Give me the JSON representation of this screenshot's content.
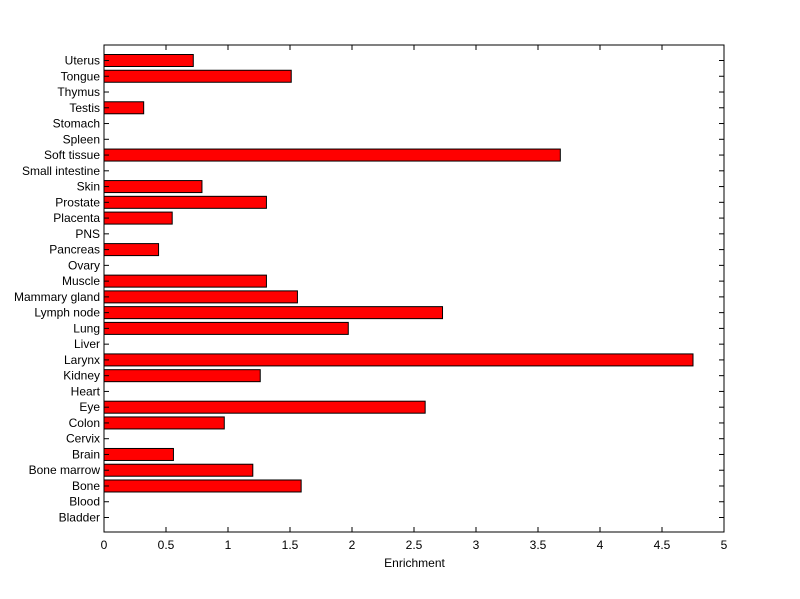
{
  "chart_data": {
    "type": "bar",
    "orientation": "horizontal",
    "title": "",
    "xlabel": "Enrichment",
    "ylabel": "",
    "xlim": [
      0,
      5
    ],
    "xticks": [
      "0",
      "0.5",
      "1",
      "1.5",
      "2",
      "2.5",
      "3",
      "3.5",
      "4",
      "4.5",
      "5"
    ],
    "grid": false,
    "bar_color": "#ff0000",
    "categories": [
      "Uterus",
      "Tongue",
      "Thymus",
      "Testis",
      "Stomach",
      "Spleen",
      "Soft tissue",
      "Small intestine",
      "Skin",
      "Prostate",
      "Placenta",
      "PNS",
      "Pancreas",
      "Ovary",
      "Muscle",
      "Mammary gland",
      "Lymph node",
      "Lung",
      "Liver",
      "Larynx",
      "Kidney",
      "Heart",
      "Eye",
      "Colon",
      "Cervix",
      "Brain",
      "Bone marrow",
      "Bone",
      "Blood",
      "Bladder"
    ],
    "values": [
      0.72,
      1.51,
      0,
      0.32,
      0,
      0,
      3.68,
      0,
      0.79,
      1.31,
      0.55,
      0,
      0.44,
      0,
      1.31,
      1.56,
      2.73,
      1.97,
      0,
      4.75,
      1.26,
      0,
      2.59,
      0.97,
      0,
      0.56,
      1.2,
      1.59,
      0,
      0
    ]
  }
}
